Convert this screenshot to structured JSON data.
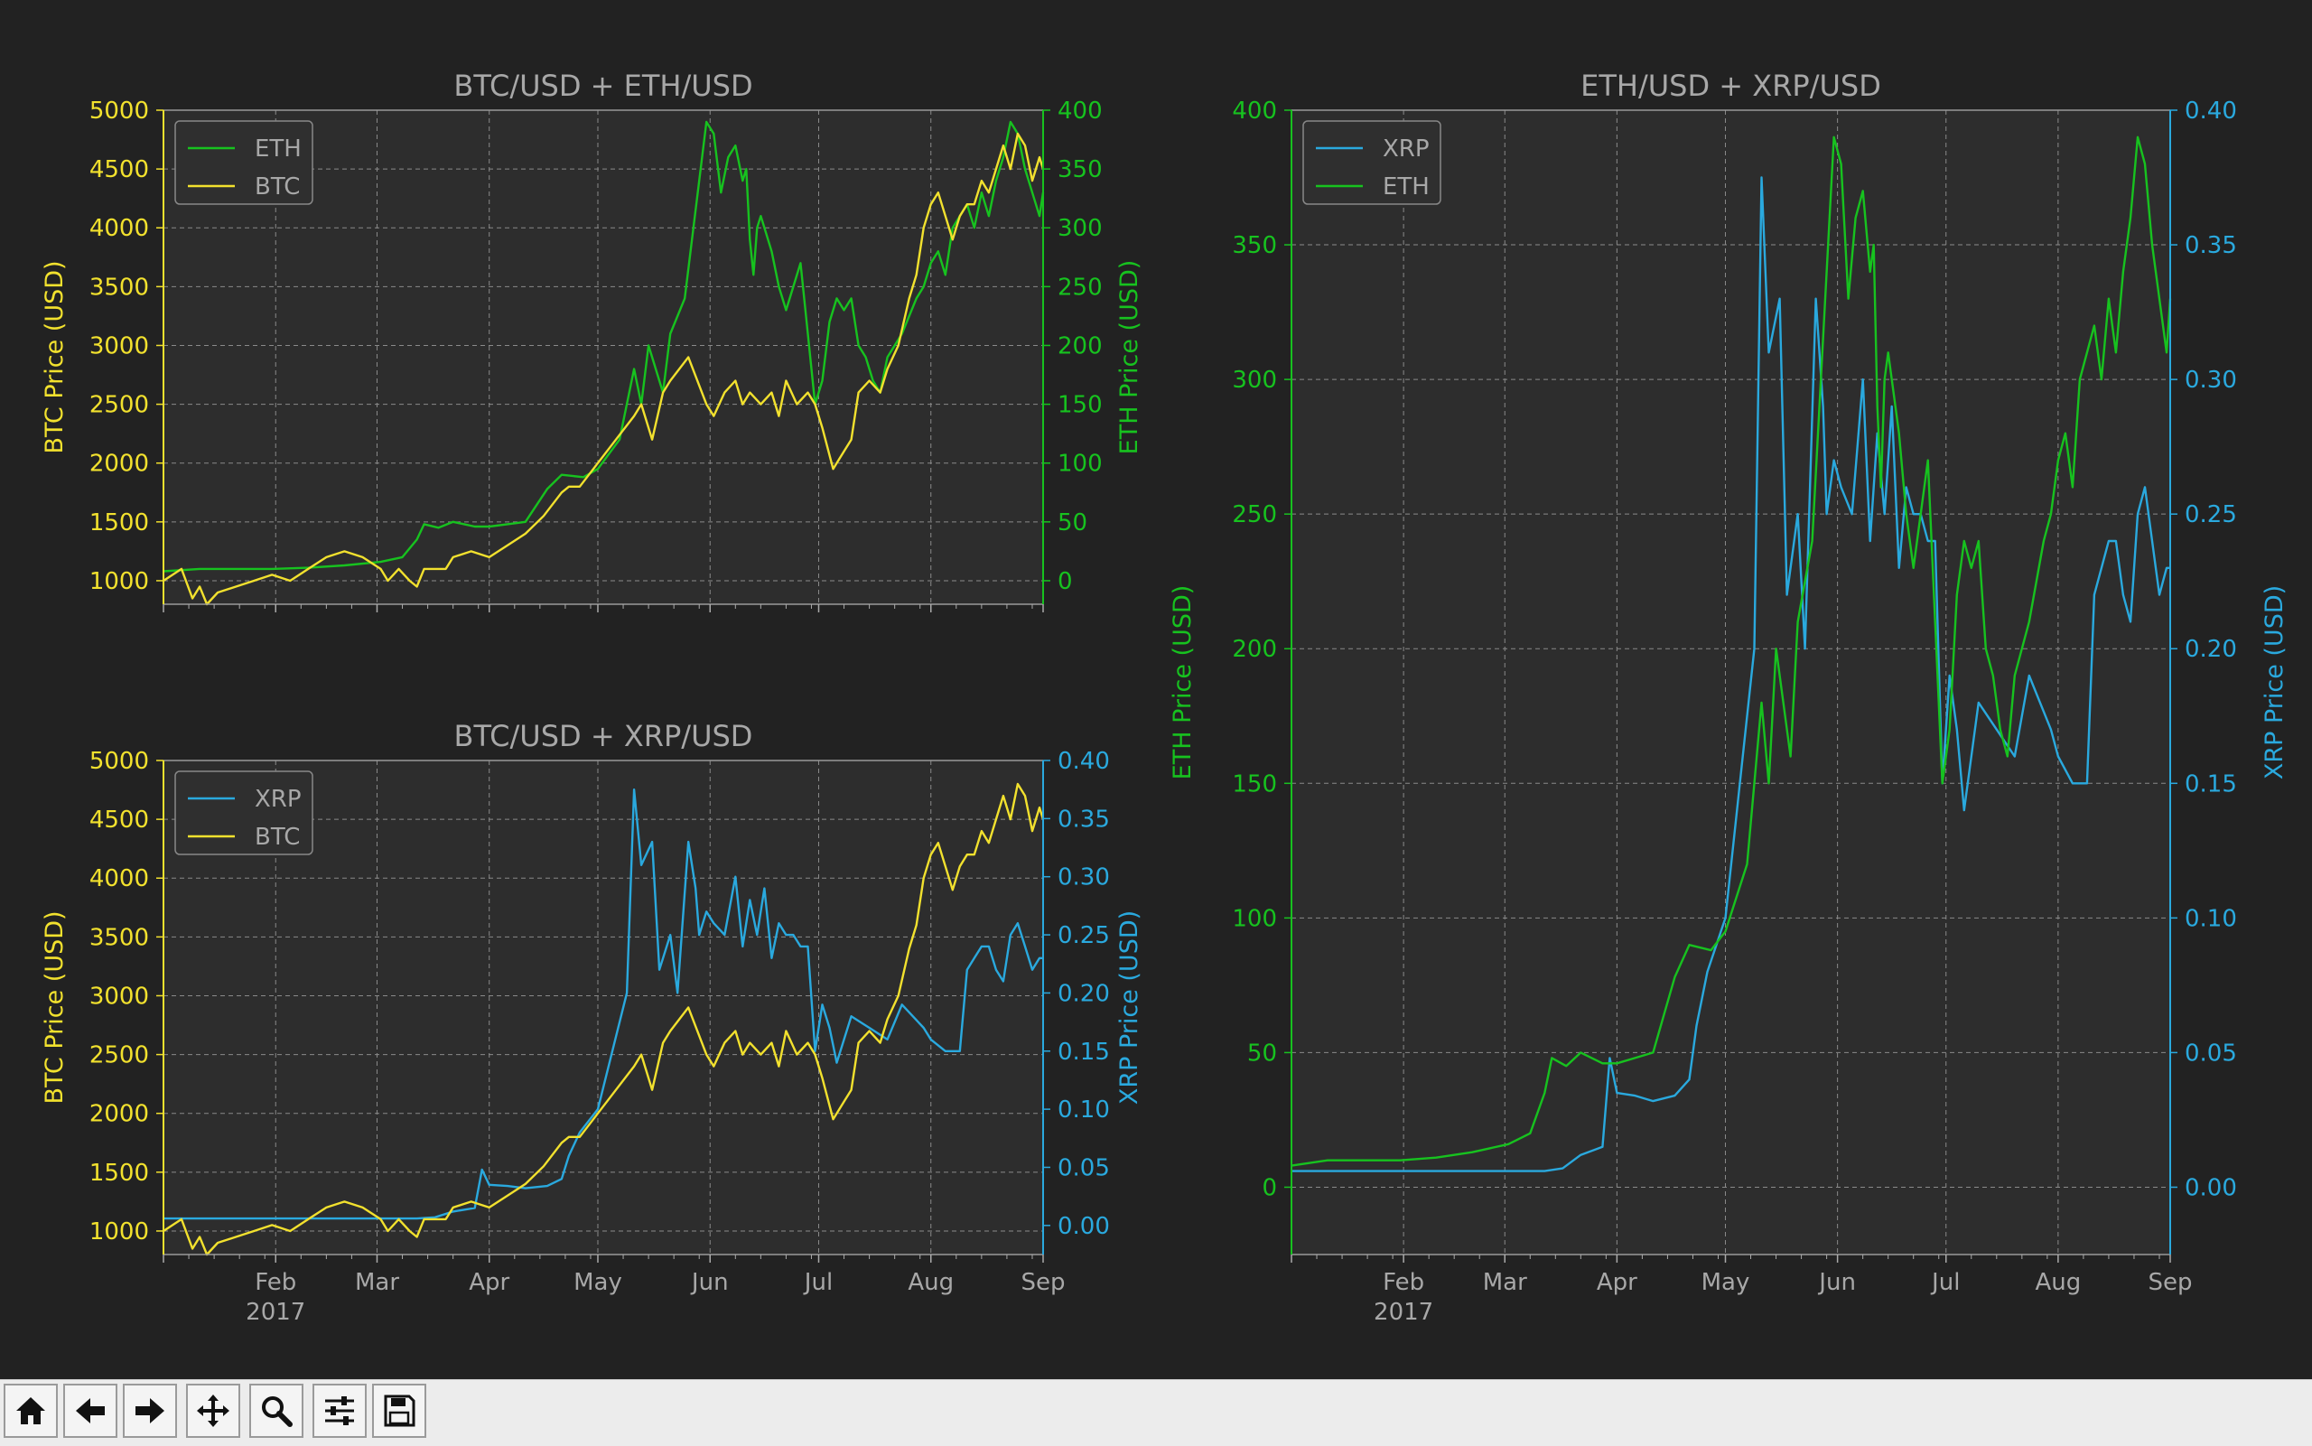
{
  "figure": {
    "background": "#222222",
    "axes_face": "#2d2d2d",
    "colors": {
      "btc": "#f2e12e",
      "eth": "#17c21f",
      "xrp": "#2aa9de",
      "text": "#a8a8a8",
      "grid": "#8a8a8a"
    },
    "x_ticks": [
      "Feb\n2017",
      "Mar",
      "Apr",
      "May",
      "Jun",
      "Jul",
      "Aug",
      "Sep"
    ]
  },
  "chart_data": [
    {
      "type": "line",
      "title": "BTC/USD + ETH/USD",
      "xlabel": "",
      "ylabel_left": "BTC Price (USD)",
      "ylabel_right": "ETH Price (USD)",
      "x_range": [
        "2017-01-01",
        "2017-09-01"
      ],
      "ylim_left": [
        800,
        5000
      ],
      "ylim_right": [
        -20,
        400
      ],
      "yticks_left": [
        "1000",
        "1500",
        "2000",
        "2500",
        "3000",
        "3500",
        "4000",
        "4500",
        "5000"
      ],
      "yticks_right": [
        "0",
        "50",
        "100",
        "150",
        "200",
        "250",
        "300",
        "350",
        "400"
      ],
      "legend": [
        "ETH",
        "BTC"
      ],
      "legend_position": "top-left",
      "series": [
        {
          "name": "ETH",
          "axis": "right",
          "color": "#17c21f",
          "x": [
            0,
            10,
            20,
            30,
            40,
            50,
            60,
            66,
            70,
            72,
            76,
            80,
            86,
            90,
            95,
            100,
            106,
            110,
            116,
            120,
            126,
            130,
            132,
            134,
            138,
            140,
            144,
            148,
            150,
            152,
            154,
            156,
            158,
            160,
            161,
            162,
            163,
            164,
            165,
            166,
            168,
            170,
            172,
            174,
            176,
            178,
            180,
            182,
            184,
            186,
            188,
            190,
            192,
            194,
            196,
            198,
            200,
            204,
            208,
            210,
            212,
            214,
            216,
            218,
            220,
            222,
            224,
            226,
            228,
            230,
            232,
            234,
            236,
            238,
            240,
            242,
            243
          ],
          "values": [
            8,
            10,
            10,
            10,
            11,
            13,
            16,
            20,
            35,
            48,
            45,
            50,
            46,
            46,
            48,
            50,
            78,
            90,
            88,
            95,
            120,
            180,
            150,
            200,
            160,
            210,
            240,
            340,
            390,
            380,
            330,
            360,
            370,
            340,
            350,
            290,
            260,
            300,
            310,
            300,
            280,
            250,
            230,
            250,
            270,
            210,
            150,
            170,
            220,
            240,
            230,
            240,
            200,
            190,
            170,
            160,
            190,
            210,
            240,
            250,
            270,
            280,
            260,
            300,
            310,
            320,
            300,
            330,
            310,
            340,
            360,
            390,
            380,
            350,
            330,
            310,
            330
          ]
        },
        {
          "name": "BTC",
          "axis": "left",
          "color": "#f2e12e",
          "x": [
            0,
            5,
            8,
            10,
            12,
            15,
            20,
            25,
            30,
            35,
            40,
            45,
            50,
            55,
            60,
            62,
            65,
            68,
            70,
            72,
            75,
            78,
            80,
            85,
            90,
            95,
            100,
            105,
            110,
            112,
            115,
            120,
            125,
            130,
            132,
            135,
            138,
            140,
            145,
            150,
            152,
            155,
            158,
            160,
            162,
            165,
            168,
            170,
            172,
            175,
            178,
            180,
            182,
            185,
            188,
            190,
            192,
            195,
            198,
            200,
            203,
            206,
            208,
            210,
            212,
            214,
            216,
            218,
            220,
            222,
            224,
            226,
            228,
            230,
            232,
            234,
            236,
            238,
            240,
            242,
            243
          ],
          "values": [
            1000,
            1100,
            850,
            950,
            800,
            900,
            950,
            1000,
            1050,
            1000,
            1100,
            1200,
            1250,
            1200,
            1100,
            1000,
            1100,
            1000,
            950,
            1100,
            1100,
            1100,
            1200,
            1250,
            1200,
            1300,
            1400,
            1550,
            1750,
            1800,
            1800,
            2000,
            2200,
            2400,
            2500,
            2200,
            2600,
            2700,
            2900,
            2500,
            2400,
            2600,
            2700,
            2500,
            2600,
            2500,
            2600,
            2400,
            2700,
            2500,
            2600,
            2500,
            2300,
            1950,
            2100,
            2200,
            2600,
            2700,
            2600,
            2800,
            3000,
            3400,
            3600,
            4000,
            4200,
            4300,
            4100,
            3900,
            4100,
            4200,
            4200,
            4400,
            4300,
            4500,
            4700,
            4500,
            4800,
            4700,
            4400,
            4600,
            4500
          ]
        }
      ]
    },
    {
      "type": "line",
      "title": "BTC/USD + XRP/USD",
      "xlabel": "",
      "ylabel_left": "BTC Price (USD)",
      "ylabel_right": "XRP Price (USD)",
      "x_range": [
        "2017-01-01",
        "2017-09-01"
      ],
      "ylim_left": [
        800,
        5000
      ],
      "ylim_right": [
        -0.025,
        0.4
      ],
      "yticks_left": [
        "1000",
        "1500",
        "2000",
        "2500",
        "3000",
        "3500",
        "4000",
        "4500",
        "5000"
      ],
      "yticks_right": [
        "0.00",
        "0.05",
        "0.10",
        "0.15",
        "0.20",
        "0.25",
        "0.30",
        "0.35",
        "0.40"
      ],
      "legend": [
        "XRP",
        "BTC"
      ],
      "legend_position": "top-left",
      "series": [
        {
          "name": "XRP",
          "axis": "right",
          "color": "#2aa9de",
          "x": [
            0,
            10,
            20,
            30,
            40,
            50,
            60,
            70,
            75,
            80,
            86,
            88,
            90,
            95,
            100,
            106,
            110,
            112,
            115,
            120,
            128,
            130,
            132,
            135,
            137,
            140,
            142,
            145,
            147,
            148,
            150,
            152,
            155,
            158,
            160,
            162,
            164,
            166,
            168,
            170,
            172,
            174,
            176,
            178,
            180,
            182,
            184,
            186,
            190,
            195,
            200,
            204,
            210,
            212,
            216,
            218,
            220,
            222,
            224,
            226,
            228,
            230,
            232,
            234,
            236,
            238,
            240,
            242,
            243
          ],
          "values": [
            0.006,
            0.006,
            0.006,
            0.006,
            0.006,
            0.006,
            0.006,
            0.006,
            0.007,
            0.012,
            0.015,
            0.048,
            0.035,
            0.034,
            0.032,
            0.034,
            0.04,
            0.06,
            0.08,
            0.1,
            0.2,
            0.375,
            0.31,
            0.33,
            0.22,
            0.25,
            0.2,
            0.33,
            0.29,
            0.25,
            0.27,
            0.26,
            0.25,
            0.3,
            0.24,
            0.28,
            0.25,
            0.29,
            0.23,
            0.26,
            0.25,
            0.25,
            0.24,
            0.24,
            0.15,
            0.19,
            0.17,
            0.14,
            0.18,
            0.17,
            0.16,
            0.19,
            0.17,
            0.16,
            0.15,
            0.15,
            0.15,
            0.22,
            0.23,
            0.24,
            0.24,
            0.22,
            0.21,
            0.25,
            0.26,
            0.24,
            0.22,
            0.23,
            0.23
          ]
        },
        {
          "name": "BTC",
          "axis": "left",
          "color": "#f2e12e",
          "x": [
            0,
            5,
            8,
            10,
            12,
            15,
            20,
            25,
            30,
            35,
            40,
            45,
            50,
            55,
            60,
            62,
            65,
            68,
            70,
            72,
            75,
            78,
            80,
            85,
            90,
            95,
            100,
            105,
            110,
            112,
            115,
            120,
            125,
            130,
            132,
            135,
            138,
            140,
            145,
            150,
            152,
            155,
            158,
            160,
            162,
            165,
            168,
            170,
            172,
            175,
            178,
            180,
            182,
            185,
            188,
            190,
            192,
            195,
            198,
            200,
            203,
            206,
            208,
            210,
            212,
            214,
            216,
            218,
            220,
            222,
            224,
            226,
            228,
            230,
            232,
            234,
            236,
            238,
            240,
            242,
            243
          ],
          "values": [
            1000,
            1100,
            850,
            950,
            800,
            900,
            950,
            1000,
            1050,
            1000,
            1100,
            1200,
            1250,
            1200,
            1100,
            1000,
            1100,
            1000,
            950,
            1100,
            1100,
            1100,
            1200,
            1250,
            1200,
            1300,
            1400,
            1550,
            1750,
            1800,
            1800,
            2000,
            2200,
            2400,
            2500,
            2200,
            2600,
            2700,
            2900,
            2500,
            2400,
            2600,
            2700,
            2500,
            2600,
            2500,
            2600,
            2400,
            2700,
            2500,
            2600,
            2500,
            2300,
            1950,
            2100,
            2200,
            2600,
            2700,
            2600,
            2800,
            3000,
            3400,
            3600,
            4000,
            4200,
            4300,
            4100,
            3900,
            4100,
            4200,
            4200,
            4400,
            4300,
            4500,
            4700,
            4500,
            4800,
            4700,
            4400,
            4600,
            4500
          ]
        }
      ]
    },
    {
      "type": "line",
      "title": "ETH/USD + XRP/USD",
      "xlabel": "",
      "ylabel_left": "ETH Price (USD)",
      "ylabel_right": "XRP Price (USD)",
      "x_range": [
        "2017-01-01",
        "2017-09-01"
      ],
      "ylim_left": [
        -25,
        400
      ],
      "ylim_right": [
        -0.025,
        0.4
      ],
      "yticks_left": [
        "0",
        "50",
        "100",
        "150",
        "200",
        "250",
        "300",
        "350",
        "400"
      ],
      "yticks_right": [
        "0.00",
        "0.05",
        "0.10",
        "0.15",
        "0.20",
        "0.25",
        "0.30",
        "0.35",
        "0.40"
      ],
      "legend": [
        "XRP",
        "ETH"
      ],
      "legend_position": "top-left",
      "series": [
        {
          "name": "XRP",
          "axis": "right",
          "color": "#2aa9de",
          "x": [
            0,
            10,
            20,
            30,
            40,
            50,
            60,
            70,
            75,
            80,
            86,
            88,
            90,
            95,
            100,
            106,
            110,
            112,
            115,
            120,
            128,
            130,
            132,
            135,
            137,
            140,
            142,
            145,
            147,
            148,
            150,
            152,
            155,
            158,
            160,
            162,
            164,
            166,
            168,
            170,
            172,
            174,
            176,
            178,
            180,
            182,
            184,
            186,
            190,
            195,
            200,
            204,
            210,
            212,
            216,
            218,
            220,
            222,
            224,
            226,
            228,
            230,
            232,
            234,
            236,
            238,
            240,
            242,
            243
          ],
          "values": [
            0.006,
            0.006,
            0.006,
            0.006,
            0.006,
            0.006,
            0.006,
            0.006,
            0.007,
            0.012,
            0.015,
            0.048,
            0.035,
            0.034,
            0.032,
            0.034,
            0.04,
            0.06,
            0.08,
            0.1,
            0.2,
            0.375,
            0.31,
            0.33,
            0.22,
            0.25,
            0.2,
            0.33,
            0.29,
            0.25,
            0.27,
            0.26,
            0.25,
            0.3,
            0.24,
            0.28,
            0.25,
            0.29,
            0.23,
            0.26,
            0.25,
            0.25,
            0.24,
            0.24,
            0.15,
            0.19,
            0.17,
            0.14,
            0.18,
            0.17,
            0.16,
            0.19,
            0.17,
            0.16,
            0.15,
            0.15,
            0.15,
            0.22,
            0.23,
            0.24,
            0.24,
            0.22,
            0.21,
            0.25,
            0.26,
            0.24,
            0.22,
            0.23,
            0.23
          ]
        },
        {
          "name": "ETH",
          "axis": "left",
          "color": "#17c21f",
          "x": [
            0,
            10,
            20,
            30,
            40,
            50,
            60,
            66,
            70,
            72,
            76,
            80,
            86,
            90,
            95,
            100,
            106,
            110,
            116,
            120,
            126,
            130,
            132,
            134,
            138,
            140,
            144,
            148,
            150,
            152,
            154,
            156,
            158,
            160,
            161,
            162,
            163,
            164,
            165,
            166,
            168,
            170,
            172,
            174,
            176,
            178,
            180,
            182,
            184,
            186,
            188,
            190,
            192,
            194,
            196,
            198,
            200,
            204,
            208,
            210,
            212,
            214,
            216,
            218,
            220,
            222,
            224,
            226,
            228,
            230,
            232,
            234,
            236,
            238,
            240,
            242,
            243
          ],
          "values": [
            8,
            10,
            10,
            10,
            11,
            13,
            16,
            20,
            35,
            48,
            45,
            50,
            46,
            46,
            48,
            50,
            78,
            90,
            88,
            95,
            120,
            180,
            150,
            200,
            160,
            210,
            240,
            340,
            390,
            380,
            330,
            360,
            370,
            340,
            350,
            290,
            260,
            300,
            310,
            300,
            280,
            250,
            230,
            250,
            270,
            210,
            150,
            170,
            220,
            240,
            230,
            240,
            200,
            190,
            170,
            160,
            190,
            210,
            240,
            250,
            270,
            280,
            260,
            300,
            310,
            320,
            300,
            330,
            310,
            340,
            360,
            390,
            380,
            350,
            330,
            310,
            330
          ]
        }
      ]
    }
  ],
  "toolbar": [
    {
      "name": "home-button",
      "icon": "home-icon"
    },
    {
      "name": "back-button",
      "icon": "arrow-left-icon"
    },
    {
      "name": "forward-button",
      "icon": "arrow-right-icon"
    },
    {
      "name": "pan-button",
      "icon": "move-icon"
    },
    {
      "name": "zoom-button",
      "icon": "magnifier-icon"
    },
    {
      "name": "configure-subplots-button",
      "icon": "sliders-icon"
    },
    {
      "name": "save-button",
      "icon": "save-icon"
    }
  ]
}
